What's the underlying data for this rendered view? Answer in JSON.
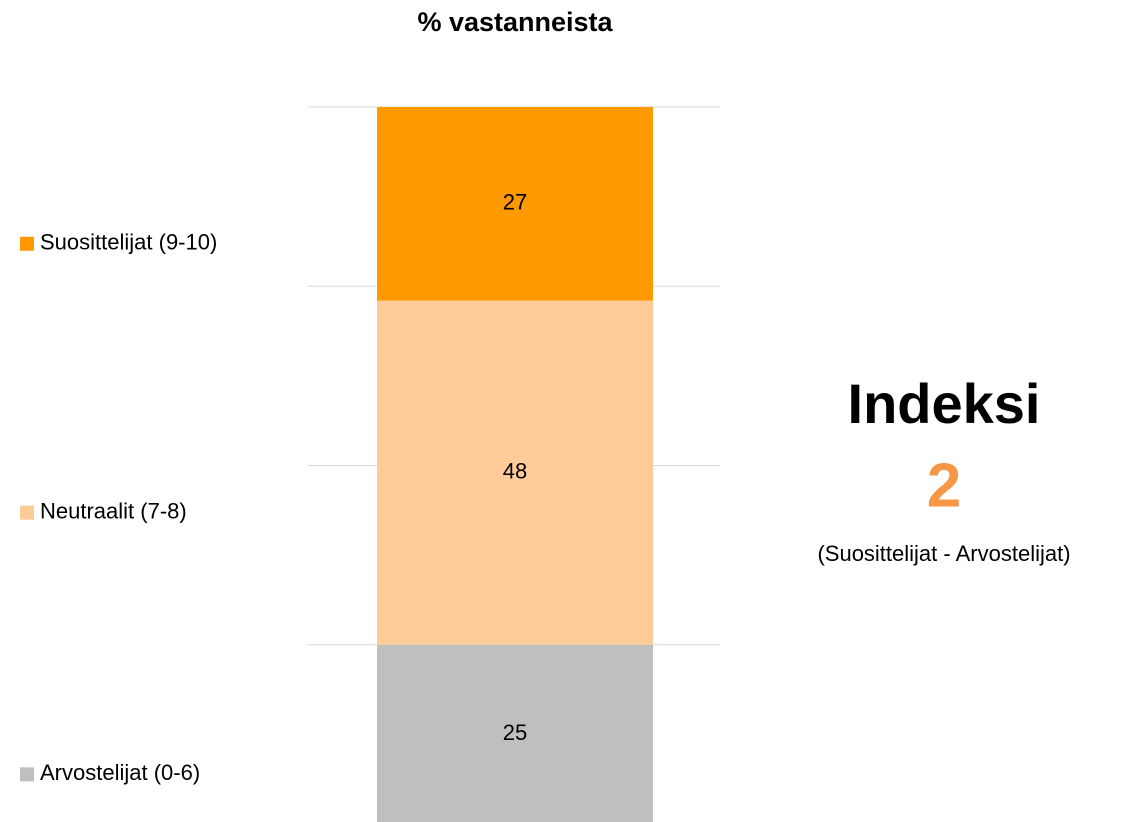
{
  "chart_data": {
    "type": "stacked_bar",
    "title": "% vastanneista",
    "series": [
      {
        "name": "Arvostelijat (0-6)",
        "color": "#bfbfbf",
        "values": [
          25
        ]
      },
      {
        "name": "Neutraalit (7-8)",
        "color": "#ffcc99",
        "values": [
          48
        ]
      },
      {
        "name": "Suosittelijat (9-10)",
        "color": "#ff9900",
        "values": [
          27
        ]
      }
    ],
    "ylim": [
      0,
      100
    ],
    "yticks": [
      0,
      25,
      50,
      75,
      100
    ],
    "grid": true,
    "legend": "left",
    "annotation": {
      "title": "Indeksi",
      "value": 2,
      "note": "(Suosittelijat - Arvostelijat)",
      "color": "#f79646"
    }
  }
}
